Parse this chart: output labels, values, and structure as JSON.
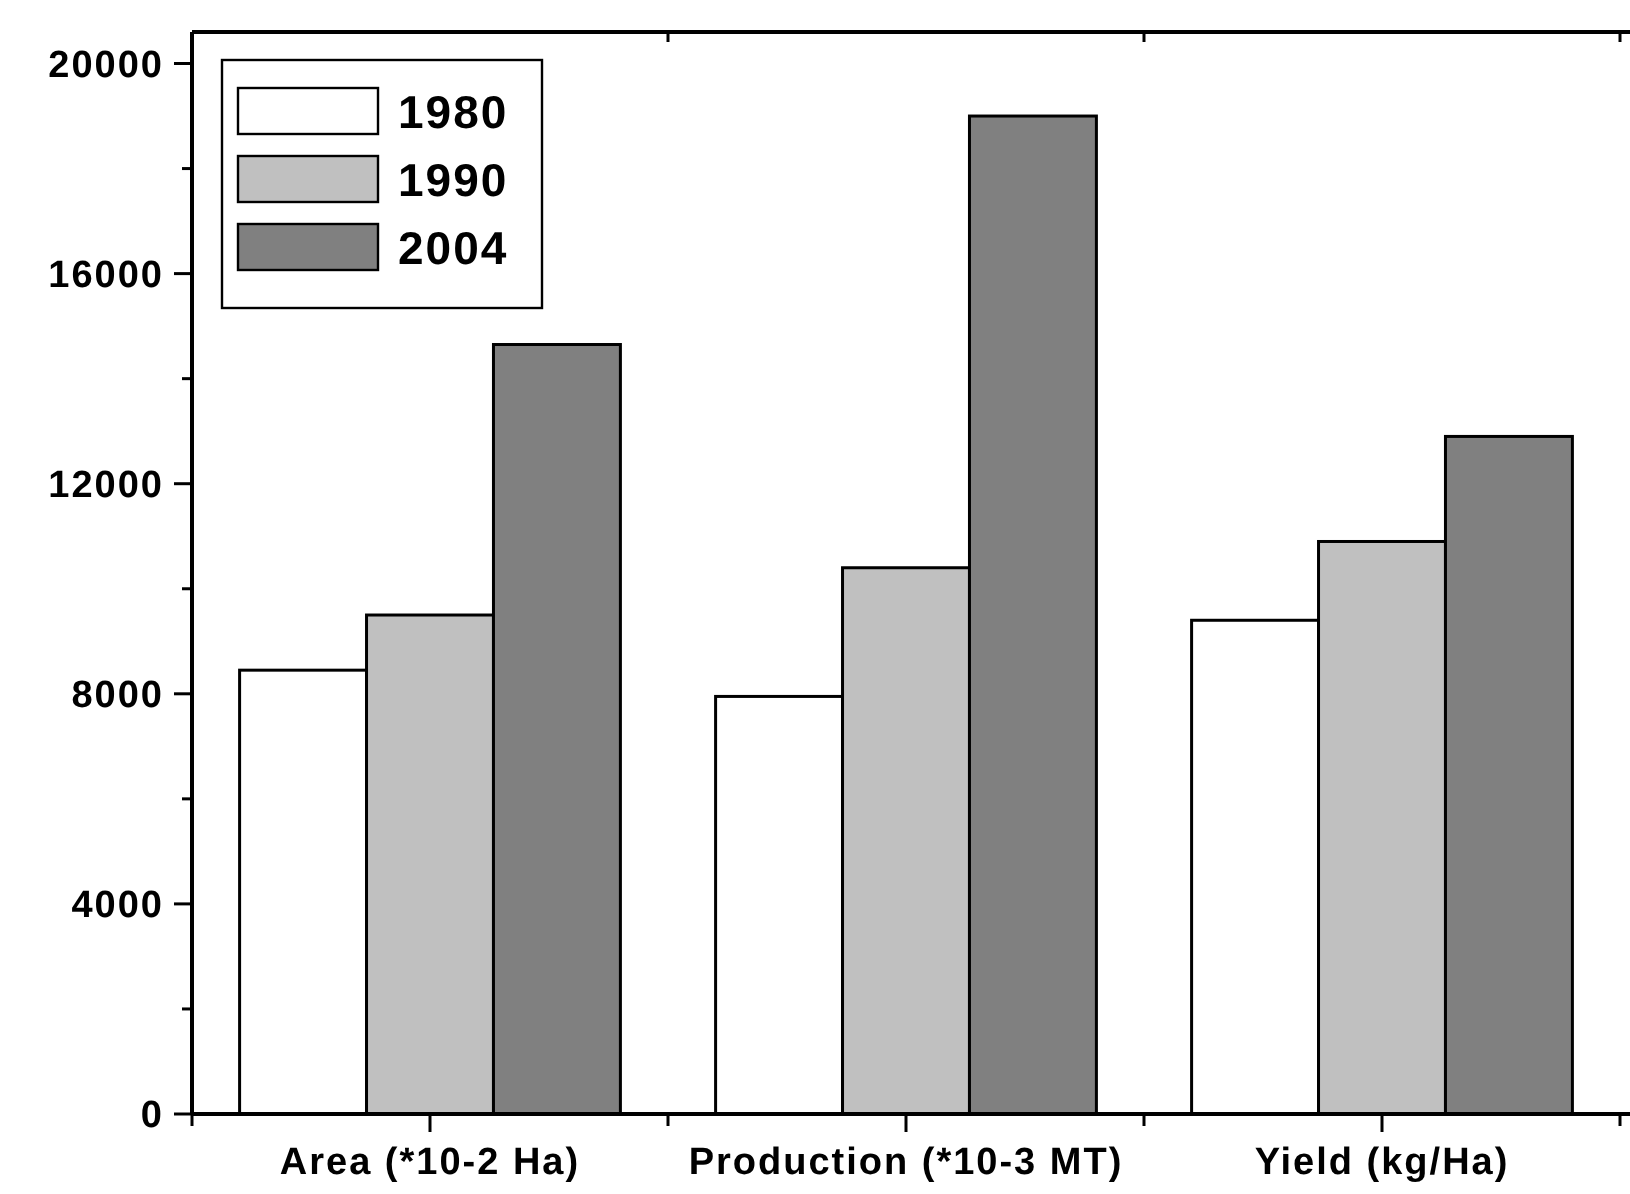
{
  "chart_data": {
    "type": "bar",
    "categories": [
      "Area (*10-2 Ha)",
      "Production (*10-3 MT)",
      "Yield (kg/Ha)"
    ],
    "series": [
      {
        "name": "1980",
        "color": "#ffffff",
        "values": [
          8450,
          7950,
          9400
        ]
      },
      {
        "name": "1990",
        "color": "#c0c0c0",
        "values": [
          9500,
          10400,
          10900
        ]
      },
      {
        "name": "2004",
        "color": "#808080",
        "values": [
          14650,
          19000,
          12900
        ]
      }
    ],
    "ylim": [
      0,
      20600
    ],
    "yticks": [
      0,
      {
        "value": 2000,
        "label": null
      },
      4000,
      {
        "value": 6000,
        "label": null
      },
      8000,
      {
        "value": 10000,
        "label": null
      },
      12000,
      {
        "value": 14000,
        "label": null
      },
      16000,
      {
        "value": 18000,
        "label": null
      },
      20000
    ],
    "legend": "top left",
    "grid": false
  }
}
